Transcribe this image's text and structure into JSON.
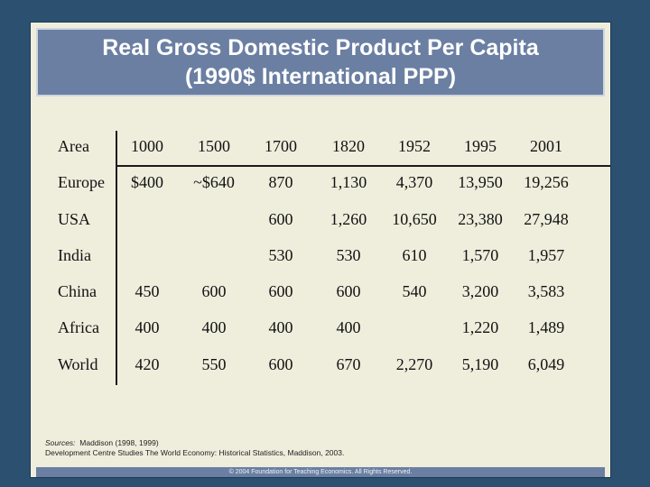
{
  "title": {
    "line1": "Real Gross Domestic Product Per Capita",
    "line2": "(1990$ International PPP)"
  },
  "table": {
    "header": [
      "Area",
      "1000",
      "1500",
      "1700",
      "1820",
      "1952",
      "1995",
      "2001"
    ],
    "rows": [
      [
        "Europe",
        "$400",
        "~$640",
        "870",
        "1,130",
        "4,370",
        "13,950",
        "19,256"
      ],
      [
        "USA",
        "",
        "",
        "600",
        "1,260",
        "10,650",
        "23,380",
        "27,948"
      ],
      [
        "India",
        "",
        "",
        "530",
        "530",
        "610",
        "1,570",
        "1,957"
      ],
      [
        "China",
        "450",
        "600",
        "600",
        "600",
        "540",
        "3,200",
        "3,583"
      ],
      [
        "Africa",
        "400",
        "400",
        "400",
        "400",
        "",
        "1,220",
        "1,489"
      ],
      [
        "World",
        "420",
        "550",
        "600",
        "670",
        "2,270",
        "5,190",
        "6,049"
      ]
    ]
  },
  "sources": {
    "label": "Sources:",
    "line1": "Maddison (1998, 1999)",
    "line2": "Development Centre Studies The World Economy: Historical Statistics, Maddison, 2003."
  },
  "footer": "© 2004 Foundation for Teaching Economics. All Rights Reserved."
}
